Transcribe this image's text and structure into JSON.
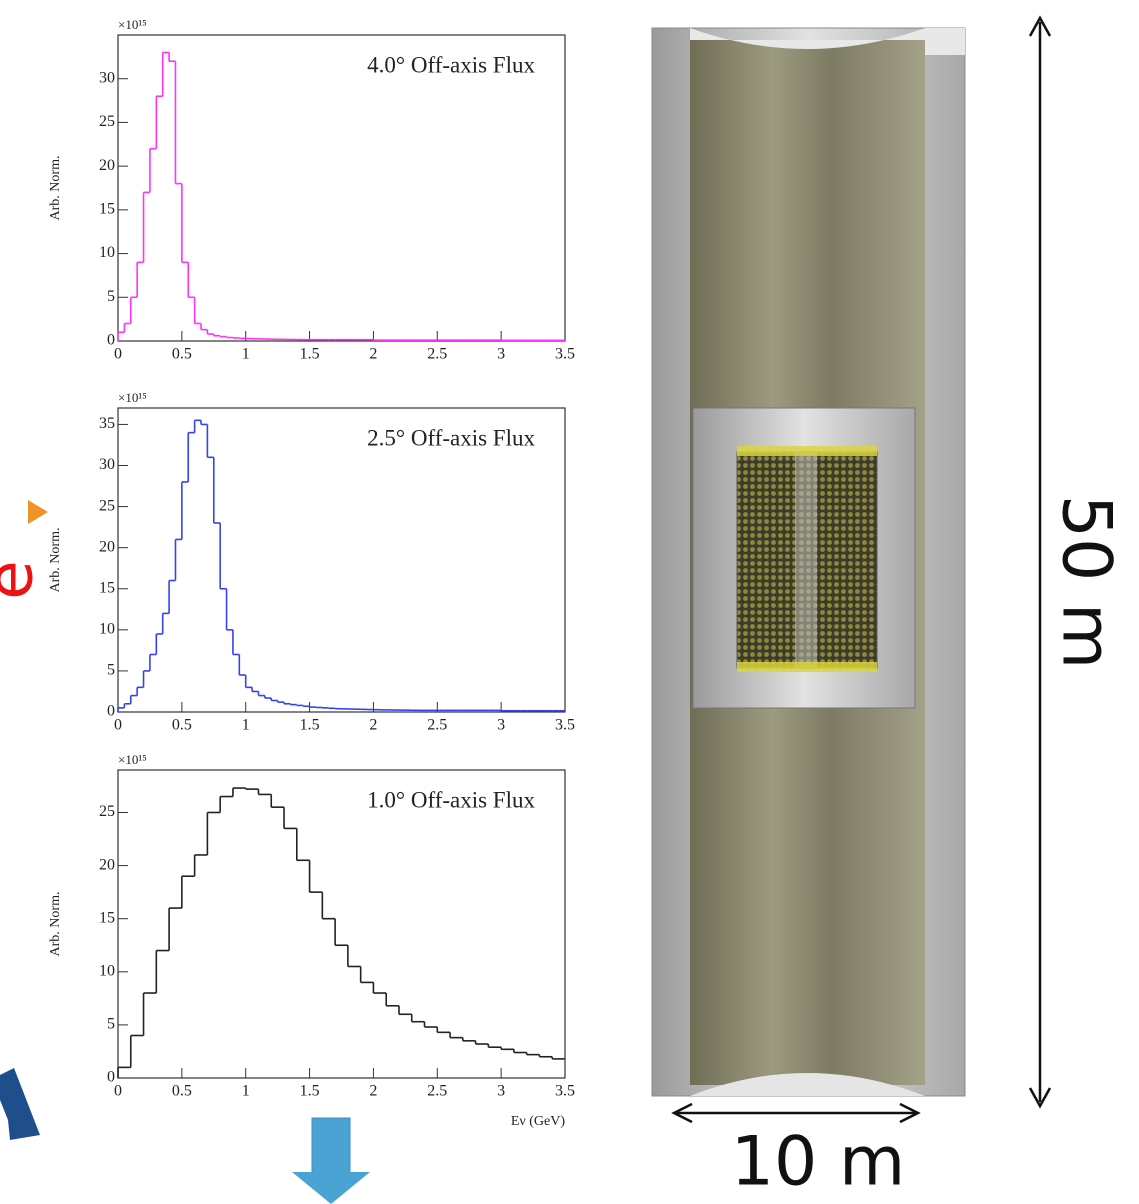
{
  "chart_data": [
    {
      "type": "histogram",
      "title": "4.0° Off-axis Flux",
      "ylabel": "Arb. Norm.",
      "y_multiplier": "×10¹⁵",
      "color": "#ff33ff",
      "bins": [
        0,
        0.05,
        0.1,
        0.15,
        0.2,
        0.25,
        0.3,
        0.35,
        0.4,
        0.45,
        0.5,
        0.55,
        0.6,
        0.65,
        0.7,
        0.75,
        0.8,
        0.85,
        0.9,
        0.95,
        1,
        1.05,
        1.1,
        1.15,
        1.2,
        1.25,
        1.3,
        1.35,
        1.4,
        1.45,
        1.5,
        1.55,
        1.6,
        1.65,
        1.7,
        1.75,
        1.8,
        1.85,
        1.9,
        1.95,
        2,
        2.05,
        2.1,
        2.15,
        2.2,
        2.25,
        2.3,
        2.35,
        2.4,
        2.45,
        2.5,
        2.55,
        2.6,
        2.65,
        2.7,
        2.75,
        2.8,
        2.85,
        2.9,
        2.95,
        3,
        3.05,
        3.1,
        3.15,
        3.2,
        3.25,
        3.3,
        3.35,
        3.4,
        3.45,
        3.5
      ],
      "values": [
        1,
        2,
        5,
        9,
        17,
        22,
        28,
        33,
        32,
        18,
        9,
        5,
        2,
        1.3,
        0.8,
        0.6,
        0.5,
        0.4,
        0.35,
        0.3,
        0.28,
        0.26,
        0.24,
        0.22,
        0.2,
        0.19,
        0.18,
        0.17,
        0.16,
        0.15,
        0.15,
        0.15,
        0.15,
        0.15,
        0.15,
        0.15,
        0.15,
        0.15,
        0.15,
        0.15,
        0.1,
        0.1,
        0.1,
        0.1,
        0.1,
        0.1,
        0.1,
        0.1,
        0.1,
        0.1,
        0.1,
        0.1,
        0.1,
        0.1,
        0.1,
        0.1,
        0.1,
        0.1,
        0.1,
        0.1,
        0.08,
        0.08,
        0.08,
        0.08,
        0.08,
        0.08,
        0.08,
        0.08,
        0.08,
        0.08
      ],
      "xlim": [
        0,
        3.5
      ],
      "xticks": [
        0,
        0.5,
        1,
        1.5,
        2,
        2.5,
        3,
        3.5
      ],
      "ylim": [
        0,
        35
      ],
      "yticks": [
        0,
        5,
        10,
        15,
        20,
        25,
        30
      ]
    },
    {
      "type": "histogram",
      "title": "2.5° Off-axis Flux",
      "ylabel": "Arb. Norm.",
      "y_multiplier": "×10¹⁵",
      "color": "#3344ee",
      "bins": [
        0,
        0.05,
        0.1,
        0.15,
        0.2,
        0.25,
        0.3,
        0.35,
        0.4,
        0.45,
        0.5,
        0.55,
        0.6,
        0.65,
        0.7,
        0.75,
        0.8,
        0.85,
        0.9,
        0.95,
        1,
        1.05,
        1.1,
        1.15,
        1.2,
        1.25,
        1.3,
        1.35,
        1.4,
        1.45,
        1.5,
        1.55,
        1.6,
        1.65,
        1.7,
        1.75,
        1.8,
        1.85,
        1.9,
        1.95,
        2,
        2.05,
        2.1,
        2.15,
        2.2,
        2.25,
        2.3,
        2.35,
        2.4,
        2.45,
        2.5,
        2.55,
        2.6,
        2.65,
        2.7,
        2.75,
        2.8,
        2.85,
        2.9,
        2.95,
        3,
        3.05,
        3.1,
        3.15,
        3.2,
        3.25,
        3.3,
        3.35,
        3.4,
        3.45,
        3.5
      ],
      "values": [
        0.5,
        1,
        2,
        3,
        5,
        7,
        9.5,
        12,
        16,
        21,
        28,
        34,
        35.5,
        35,
        31,
        23,
        15,
        10,
        7,
        4.5,
        3,
        2.5,
        2,
        1.7,
        1.4,
        1.2,
        1,
        0.9,
        0.8,
        0.7,
        0.6,
        0.55,
        0.5,
        0.45,
        0.4,
        0.38,
        0.36,
        0.34,
        0.32,
        0.3,
        0.28,
        0.26,
        0.25,
        0.24,
        0.23,
        0.22,
        0.21,
        0.2,
        0.2,
        0.2,
        0.2,
        0.2,
        0.2,
        0.2,
        0.2,
        0.2,
        0.2,
        0.2,
        0.2,
        0.2,
        0.15,
        0.15,
        0.15,
        0.15,
        0.15,
        0.15,
        0.15,
        0.15,
        0.15,
        0.15
      ],
      "xlim": [
        0,
        3.5
      ],
      "xticks": [
        0,
        0.5,
        1,
        1.5,
        2,
        2.5,
        3,
        3.5
      ],
      "ylim": [
        0,
        37
      ],
      "yticks": [
        0,
        5,
        10,
        15,
        20,
        25,
        30,
        35
      ]
    },
    {
      "type": "histogram",
      "title": "1.0° Off-axis Flux",
      "ylabel": "Arb. Norm.",
      "y_multiplier": "×10¹⁵",
      "xlabel": "Eν (GeV)",
      "color": "#222222",
      "bins": [
        0,
        0.1,
        0.2,
        0.3,
        0.4,
        0.5,
        0.6,
        0.7,
        0.8,
        0.9,
        1,
        1.1,
        1.2,
        1.3,
        1.4,
        1.5,
        1.6,
        1.7,
        1.8,
        1.9,
        2,
        2.1,
        2.2,
        2.3,
        2.4,
        2.5,
        2.6,
        2.7,
        2.8,
        2.9,
        3,
        3.1,
        3.2,
        3.3,
        3.4,
        3.5
      ],
      "values": [
        1,
        4,
        8,
        12,
        16,
        19,
        21,
        25,
        26.5,
        27.3,
        27.2,
        26.7,
        25.5,
        23.5,
        20.5,
        17.5,
        15,
        12.5,
        10.5,
        9,
        8,
        6.8,
        6,
        5.3,
        4.8,
        4.3,
        3.8,
        3.5,
        3.2,
        2.9,
        2.7,
        2.4,
        2.2,
        2,
        1.8
      ],
      "xlim": [
        0,
        3.5
      ],
      "xticks": [
        0,
        0.5,
        1,
        1.5,
        2,
        2.5,
        3,
        3.5
      ],
      "ylim": [
        0,
        29
      ],
      "yticks": [
        0,
        5,
        10,
        15,
        20,
        25
      ]
    }
  ],
  "diagram": {
    "height_label": "50 m",
    "width_label": "10 m",
    "edge_label": "e"
  }
}
